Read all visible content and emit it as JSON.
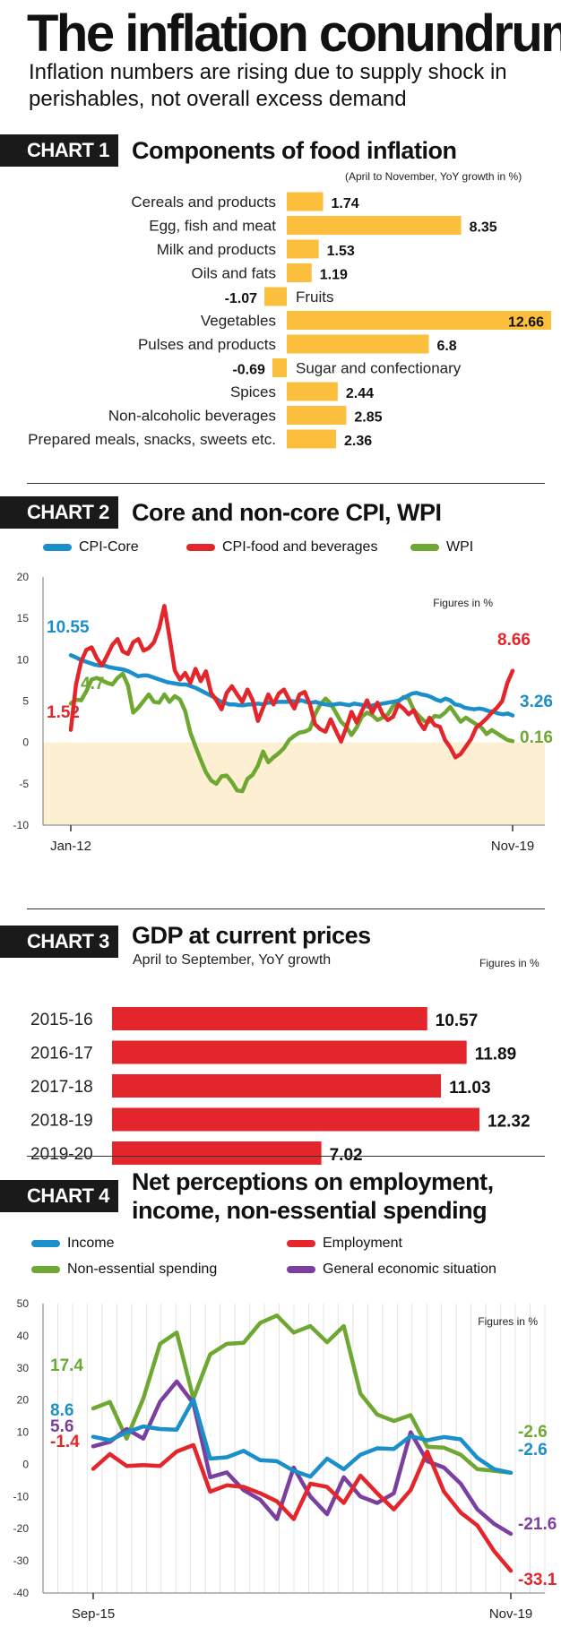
{
  "header": {
    "title": "The inflation conundrum",
    "subtitle": "Inflation numbers are rising due to supply shock in perishables, not overall excess demand"
  },
  "colors": {
    "orange": "#fbbf3d",
    "red": "#e3262c",
    "blue": "#1a8fc9",
    "green": "#6ea832",
    "purple": "#7b3fa0",
    "band": "#fcefd2"
  },
  "chart1": {
    "badge": "CHART 1",
    "title": "Components of food inflation",
    "note": "(April to November, YoY growth in %)"
  },
  "chart2": {
    "badge": "CHART 2",
    "title": "Core and non-core CPI, WPI",
    "note": "Figures in %"
  },
  "chart3": {
    "badge": "CHART 3",
    "title": "GDP at current prices",
    "subtitle": "April to September, YoY growth",
    "note": "Figures in %"
  },
  "chart4": {
    "badge": "CHART 4",
    "title": "Net perceptions on employment,",
    "title2": "income, non-essential spending",
    "note": "Figures in %"
  },
  "chart_data": [
    {
      "type": "bar",
      "orientation": "horizontal",
      "categories": [
        "Cereals and products",
        "Egg, fish and meat",
        "Milk and products",
        "Oils and fats",
        "Fruits",
        "Vegetables",
        "Pulses and products",
        "Sugar and confectionary",
        "Spices",
        "Non-alcoholic beverages",
        "Prepared meals, snacks, sweets etc."
      ],
      "values": [
        1.74,
        8.35,
        1.53,
        1.19,
        -1.07,
        12.66,
        6.8,
        -0.69,
        2.44,
        2.85,
        2.36
      ],
      "value_labels": [
        "1.74",
        "8.35",
        "1.53",
        "1.19",
        "-1.07",
        "12.66",
        "6.8",
        "-0.69",
        "2.44",
        "2.85",
        "2.36"
      ],
      "title": "Components of food inflation",
      "subtitle": "(April to November, YoY growth in %)",
      "xlim": [
        -1.07,
        12.66
      ]
    },
    {
      "type": "line",
      "x_start": "Jan-12",
      "x_end": "Nov-19",
      "x_labels": [
        "Jan-12",
        "Nov-19"
      ],
      "ylim": [
        -10,
        20
      ],
      "yticks": [
        20,
        15,
        10,
        5,
        0,
        -5,
        -10
      ],
      "note": "Figures in %",
      "shaded_band": [
        -10,
        0
      ],
      "series": [
        {
          "name": "CPI-Core",
          "color": "#1a8fc9",
          "start_label": "10.55",
          "end_label": "3.26",
          "values": [
            10.55,
            10.3,
            10.0,
            9.8,
            9.6,
            9.4,
            9.3,
            9.3,
            9.1,
            9.0,
            8.9,
            8.8,
            8.6,
            8.3,
            8.0,
            8.1,
            8.1,
            7.9,
            7.7,
            7.5,
            7.3,
            7.2,
            7.1,
            7.0,
            7.0,
            6.8,
            6.6,
            6.3,
            6.0,
            5.7,
            5.4,
            5.0,
            4.8,
            4.6,
            4.6,
            4.5,
            4.5,
            4.6,
            4.6,
            4.7,
            4.6,
            4.8,
            4.8,
            4.9,
            4.9,
            4.9,
            5.0,
            4.9,
            5.1,
            4.9,
            4.8,
            4.9,
            4.7,
            4.6,
            4.5,
            4.6,
            4.7,
            4.6,
            4.5,
            4.7,
            4.6,
            4.5,
            4.3,
            4.5,
            4.6,
            4.7,
            4.8,
            4.9,
            5.0,
            5.3,
            5.6,
            5.9,
            6.0,
            5.8,
            5.7,
            5.5,
            5.2,
            5.0,
            5.3,
            5.1,
            4.6,
            4.5,
            4.2,
            4.1,
            4.0,
            4.1,
            4.0,
            3.8,
            3.7,
            3.5,
            3.4,
            3.5,
            3.26
          ]
        },
        {
          "name": "CPI-food and beverages",
          "color": "#e3262c",
          "start_label": "1.52",
          "end_label": "8.66",
          "values": [
            1.52,
            7.0,
            9.8,
            11.2,
            11.5,
            10.2,
            9.3,
            10.5,
            11.8,
            12.5,
            11.0,
            10.7,
            12.1,
            12.5,
            11.1,
            11.4,
            12.1,
            13.8,
            16.5,
            12.7,
            8.7,
            7.6,
            8.4,
            7.2,
            8.9,
            7.4,
            8.6,
            6.0,
            5.1,
            4.0,
            6.0,
            6.8,
            5.8,
            4.9,
            6.4,
            5.1,
            2.6,
            4.2,
            5.8,
            4.6,
            5.9,
            6.4,
            5.2,
            4.1,
            5.8,
            6.1,
            4.6,
            2.2,
            1.6,
            1.3,
            2.8,
            1.4,
            0.1,
            1.8,
            3.7,
            2.4,
            3.8,
            5.1,
            3.6,
            4.8,
            3.4,
            2.7,
            3.1,
            4.6,
            4.1,
            3.4,
            3.9,
            2.5,
            1.6,
            3.0,
            2.1,
            1.9,
            0.3,
            -0.6,
            -1.8,
            -1.4,
            -0.5,
            0.4,
            1.8,
            2.3,
            2.9,
            3.6,
            4.2,
            5.0,
            7.2,
            8.66
          ]
        },
        {
          "name": "WPI",
          "color": "#6ea832",
          "start_label": "4.7",
          "end_label": "0.16",
          "values": [
            4.7,
            5.2,
            5.1,
            6.2,
            7.6,
            7.8,
            7.5,
            7.2,
            7.0,
            7.8,
            8.3,
            6.9,
            3.6,
            4.2,
            5.0,
            5.8,
            4.9,
            4.8,
            5.8,
            4.9,
            5.6,
            5.2,
            3.8,
            1.2,
            -0.5,
            -2.1,
            -3.6,
            -4.6,
            -5.0,
            -4.1,
            -4.0,
            -4.8,
            -5.8,
            -5.9,
            -4.4,
            -3.9,
            -2.8,
            -1.1,
            -2.4,
            -1.8,
            -1.3,
            -0.7,
            0.3,
            0.8,
            1.2,
            1.3,
            1.6,
            3.4,
            4.6,
            5.3,
            4.7,
            3.6,
            2.5,
            1.9,
            0.9,
            1.8,
            3.1,
            3.6,
            3.3,
            2.7,
            3.0,
            3.4,
            4.4,
            4.9,
            5.5,
            5.3,
            3.9,
            3.2,
            2.6,
            2.5,
            3.2,
            3.1,
            3.6,
            4.3,
            3.4,
            2.5,
            3.0,
            2.6,
            2.2,
            1.8,
            1.0,
            1.5,
            1.1,
            0.7,
            0.3,
            0.16
          ]
        }
      ]
    },
    {
      "type": "bar",
      "orientation": "horizontal",
      "title": "GDP at current prices",
      "subtitle": "April to September, YoY growth",
      "note": "Figures in %",
      "categories": [
        "2015-16",
        "2016-17",
        "2017-18",
        "2018-19",
        "2019-20"
      ],
      "values": [
        10.57,
        11.89,
        11.03,
        12.32,
        7.02
      ],
      "value_labels": [
        "10.57",
        "11.89",
        "11.03",
        "12.32",
        "7.02"
      ]
    },
    {
      "type": "line",
      "x_start": "Sep-15",
      "x_end": "Nov-19",
      "x_labels": [
        "Sep-15",
        "Nov-19"
      ],
      "ylim": [
        -40,
        50
      ],
      "yticks": [
        50,
        40,
        30,
        20,
        10,
        0,
        -10,
        -20,
        -30,
        -40
      ],
      "note": "Figures in %",
      "series": [
        {
          "name": "Income",
          "color": "#1a8fc9",
          "start_label": "8.6",
          "end_label": "-2.6",
          "values": [
            8.6,
            7.5,
            10.0,
            11.8,
            11.0,
            10.8,
            20.2,
            1.8,
            2.2,
            4.2,
            1.3,
            1.0,
            -2.0,
            -3.8,
            1.8,
            -1.5,
            3.0,
            5.0,
            4.8,
            8.8,
            7.5,
            8.5,
            7.8,
            2.0,
            -1.5,
            -2.6
          ]
        },
        {
          "name": "Employment",
          "color": "#e3262c",
          "start_label": "-1.4",
          "end_label": "-33.1",
          "values": [
            -1.4,
            3.2,
            -0.5,
            -0.2,
            -0.5,
            4.0,
            6.0,
            -8.5,
            -6.5,
            -7.0,
            -9.0,
            -11.5,
            -17.0,
            -6.0,
            -7.0,
            -12.0,
            -3.5,
            -9.0,
            -14.0,
            -8.0,
            4.0,
            -8.5,
            -15.0,
            -19.0,
            -27.0,
            -33.1
          ]
        },
        {
          "name": "Non-essential spending",
          "color": "#6ea832",
          "start_label": "17.4",
          "end_label": "-2.6",
          "values": [
            17.4,
            19.4,
            8.0,
            20.5,
            37.5,
            41.0,
            20.5,
            34.2,
            37.5,
            37.8,
            44.0,
            46.3,
            41.0,
            43.0,
            38.0,
            43.0,
            22.0,
            15.5,
            13.5,
            15.3,
            5.5,
            5.2,
            3.0,
            -1.5,
            -2.0,
            -2.6
          ]
        },
        {
          "name": "General economic situation",
          "color": "#7b3fa0",
          "start_label": "5.6",
          "end_label": "-21.6",
          "values": [
            5.6,
            7.0,
            11.0,
            8.0,
            19.5,
            25.8,
            19.0,
            -4.0,
            -2.5,
            -8.0,
            -11.0,
            -17.0,
            -1.0,
            -10.0,
            -15.5,
            -4.0,
            -10.0,
            -12.0,
            -9.0,
            10.0,
            1.0,
            -1.0,
            -6.0,
            -14.0,
            -18.5,
            -21.6
          ]
        }
      ]
    }
  ]
}
